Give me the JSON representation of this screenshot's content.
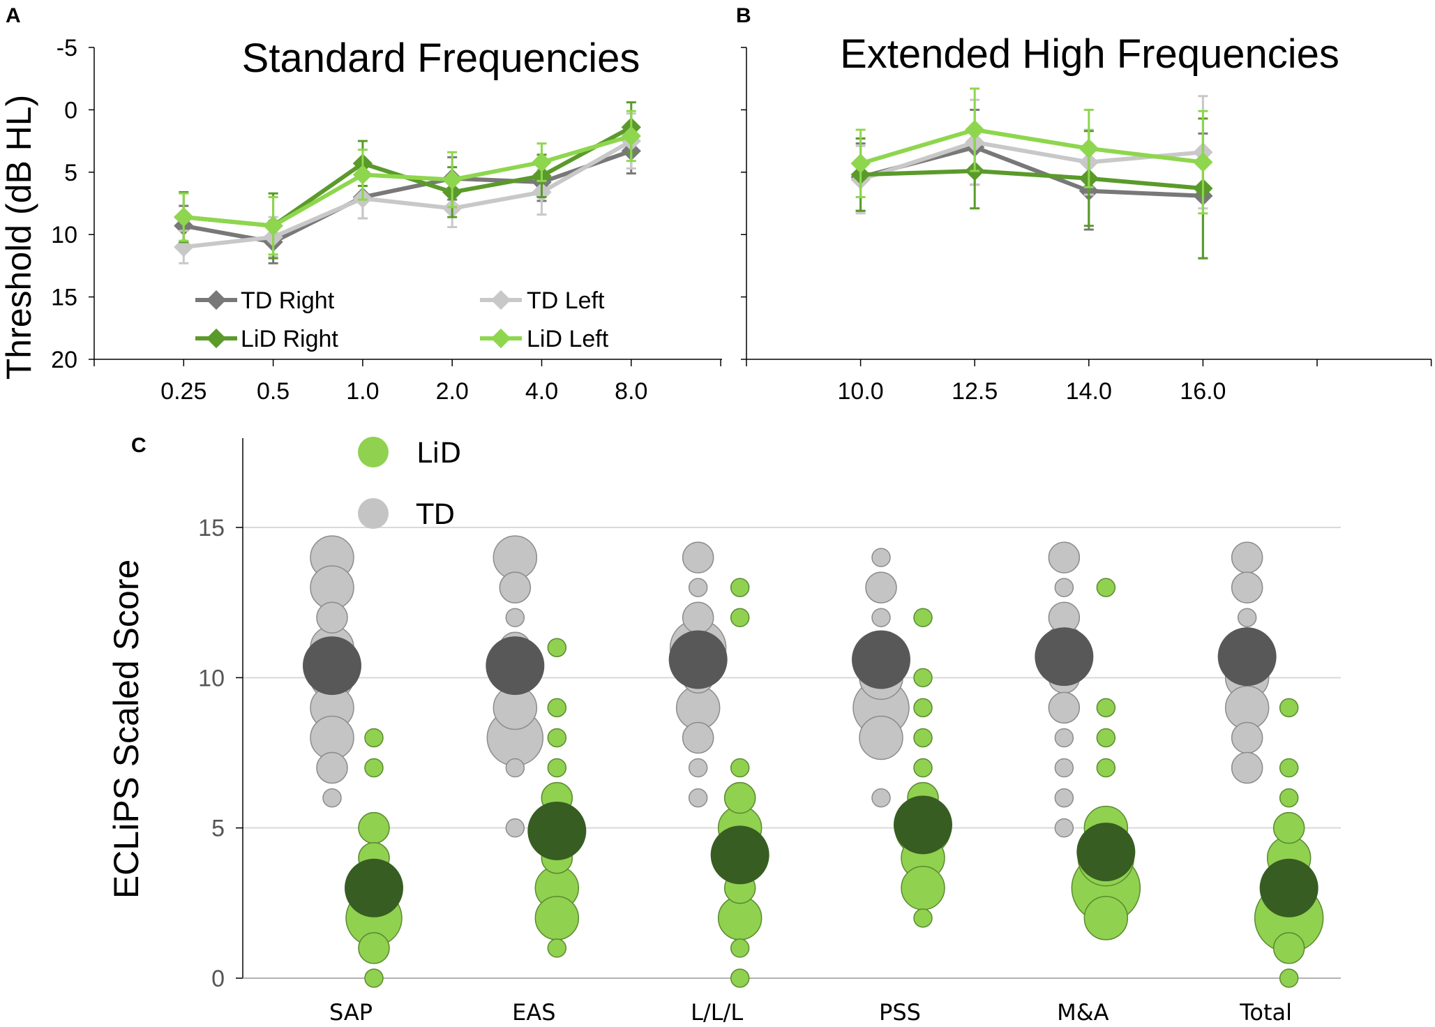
{
  "colors": {
    "td_right": "#787878",
    "td_left": "#c8c8c8",
    "lid_right": "#5a9a2a",
    "lid_left": "#8ed64e",
    "td_bubble": "#c4c4c4",
    "td_mean": "#585858",
    "lid_bubble": "#90d14f",
    "lid_mean": "#375d22",
    "grid": "#d9d9d9"
  },
  "chart_data": [
    {
      "panel": "A",
      "type": "line",
      "title": "Standard Frequencies",
      "ylabel": "Threshold (dB HL)",
      "xlabel": "",
      "ylim": [
        20,
        -5
      ],
      "yticks": [
        "-5",
        "0",
        "5",
        "10",
        "15",
        "20"
      ],
      "categories": [
        "0.25",
        "0.5",
        "1.0",
        "2.0",
        "4.0",
        "8.0"
      ],
      "legend_position": "bottom-left",
      "series": [
        {
          "key": "td_right",
          "name": "TD Right",
          "values": [
            9.3,
            10.6,
            7.0,
            5.5,
            5.8,
            3.3
          ],
          "errors": [
            1.6,
            1.7,
            1.7,
            1.7,
            1.5,
            1.8
          ]
        },
        {
          "key": "td_left",
          "name": "TD Left",
          "values": [
            11.0,
            10.2,
            7.1,
            7.9,
            6.6,
            2.5
          ],
          "errors": [
            1.3,
            1.6,
            1.6,
            1.5,
            1.8,
            2.2
          ]
        },
        {
          "key": "lid_right",
          "name": "LiD Right",
          "values": [
            8.6,
            9.3,
            4.3,
            6.6,
            5.3,
            1.4
          ],
          "errors": [
            2.0,
            2.6,
            1.8,
            2.0,
            1.7,
            2.0
          ]
        },
        {
          "key": "lid_left",
          "name": "LiD Left",
          "values": [
            8.6,
            9.3,
            5.2,
            5.6,
            4.2,
            2.1
          ],
          "errors": [
            1.9,
            2.3,
            2.0,
            2.2,
            1.5,
            2.0
          ]
        }
      ]
    },
    {
      "panel": "B",
      "type": "line",
      "title": "Extended High Frequencies",
      "xlabel": "",
      "ylim": [
        20,
        -5
      ],
      "categories": [
        "10.0",
        "12.5",
        "14.0",
        "16.0"
      ],
      "series": [
        {
          "key": "td_right",
          "name": "TD Right",
          "values": [
            5.4,
            3.0,
            6.5,
            6.9
          ],
          "errors": [
            2.7,
            3.0,
            3.1,
            5.0
          ]
        },
        {
          "key": "td_left",
          "name": "TD Left",
          "values": [
            5.6,
            2.6,
            4.2,
            3.4
          ],
          "errors": [
            2.7,
            3.4,
            2.6,
            4.5
          ]
        },
        {
          "key": "lid_right",
          "name": "LiD Right",
          "values": [
            5.2,
            4.9,
            5.5,
            6.3
          ],
          "errors": [
            2.9,
            3.0,
            3.8,
            5.6
          ]
        },
        {
          "key": "lid_left",
          "name": "LiD Left",
          "values": [
            4.3,
            1.6,
            3.1,
            4.2
          ],
          "errors": [
            2.7,
            3.3,
            3.1,
            4.1
          ]
        }
      ]
    },
    {
      "panel": "C",
      "type": "scatter",
      "subtype": "bubble",
      "ylabel": "ECLiPS Scaled Score",
      "xlabel": "",
      "ylim": [
        0,
        18
      ],
      "yticks": [
        "0",
        "5",
        "10",
        "15"
      ],
      "grid": true,
      "categories": [
        "SAP",
        "EAS",
        "L/L/L",
        "PSS",
        "M&A",
        "Total"
      ],
      "legend": [
        {
          "key": "lid",
          "label": "LiD"
        },
        {
          "key": "td",
          "label": "TD"
        }
      ],
      "means": {
        "td": [
          10.4,
          10.4,
          10.6,
          10.6,
          10.7,
          10.7
        ],
        "lid": [
          3.0,
          4.9,
          4.1,
          5.1,
          4.2,
          3.0
        ]
      },
      "bubbles": {
        "td": [
          [
            [
              14,
              3
            ],
            [
              13,
              3
            ],
            [
              12,
              2
            ],
            [
              11,
              3
            ],
            [
              10,
              3
            ],
            [
              9,
              3
            ],
            [
              8,
              3
            ],
            [
              7,
              2
            ],
            [
              6,
              1
            ]
          ],
          [
            [
              14,
              3
            ],
            [
              13,
              2
            ],
            [
              12,
              1
            ],
            [
              11,
              2
            ],
            [
              10,
              2
            ],
            [
              9,
              3
            ],
            [
              8,
              4
            ],
            [
              7,
              1
            ],
            [
              5,
              1
            ]
          ],
          [
            [
              14,
              2
            ],
            [
              13,
              1
            ],
            [
              12,
              2
            ],
            [
              11,
              4
            ],
            [
              10,
              2
            ],
            [
              9,
              3
            ],
            [
              8,
              2
            ],
            [
              7,
              1
            ],
            [
              6,
              1
            ]
          ],
          [
            [
              14,
              1
            ],
            [
              13,
              2
            ],
            [
              12,
              1
            ],
            [
              11,
              2
            ],
            [
              10,
              3
            ],
            [
              9,
              4
            ],
            [
              8,
              3
            ],
            [
              6,
              1
            ]
          ],
          [
            [
              14,
              2
            ],
            [
              13,
              1
            ],
            [
              12,
              2
            ],
            [
              11,
              3
            ],
            [
              10,
              2
            ],
            [
              9,
              2
            ],
            [
              8,
              1
            ],
            [
              7,
              1
            ],
            [
              6,
              1
            ],
            [
              5,
              1
            ]
          ],
          [
            [
              14,
              2
            ],
            [
              13,
              2
            ],
            [
              12,
              1
            ],
            [
              11,
              2
            ],
            [
              10,
              3
            ],
            [
              9,
              3
            ],
            [
              8,
              2
            ],
            [
              7,
              2
            ]
          ]
        ],
        "lid": [
          [
            [
              8,
              1
            ],
            [
              7,
              1
            ],
            [
              5,
              2
            ],
            [
              4,
              2
            ],
            [
              3,
              3
            ],
            [
              2,
              4
            ],
            [
              1,
              2
            ],
            [
              0,
              1
            ]
          ],
          [
            [
              11,
              1
            ],
            [
              9,
              1
            ],
            [
              8,
              1
            ],
            [
              7,
              1
            ],
            [
              6,
              2
            ],
            [
              5,
              2
            ],
            [
              4,
              2
            ],
            [
              3,
              3
            ],
            [
              2,
              3
            ],
            [
              1,
              1
            ]
          ],
          [
            [
              13,
              1
            ],
            [
              12,
              1
            ],
            [
              7,
              1
            ],
            [
              6,
              2
            ],
            [
              5,
              3
            ],
            [
              4,
              2
            ],
            [
              3,
              2
            ],
            [
              2,
              3
            ],
            [
              1,
              1
            ],
            [
              0,
              1
            ]
          ],
          [
            [
              12,
              1
            ],
            [
              10,
              1
            ],
            [
              9,
              1
            ],
            [
              8,
              1
            ],
            [
              7,
              1
            ],
            [
              6,
              2
            ],
            [
              5,
              4
            ],
            [
              4,
              3
            ],
            [
              3,
              3
            ],
            [
              2,
              1
            ]
          ],
          [
            [
              13,
              1
            ],
            [
              9,
              1
            ],
            [
              8,
              1
            ],
            [
              7,
              1
            ],
            [
              5,
              3
            ],
            [
              4,
              4
            ],
            [
              3,
              5
            ],
            [
              2,
              3
            ]
          ],
          [
            [
              9,
              1
            ],
            [
              7,
              1
            ],
            [
              6,
              1
            ],
            [
              5,
              2
            ],
            [
              4,
              3
            ],
            [
              3,
              3
            ],
            [
              2,
              5
            ],
            [
              1,
              2
            ],
            [
              0,
              1
            ]
          ]
        ]
      }
    }
  ]
}
